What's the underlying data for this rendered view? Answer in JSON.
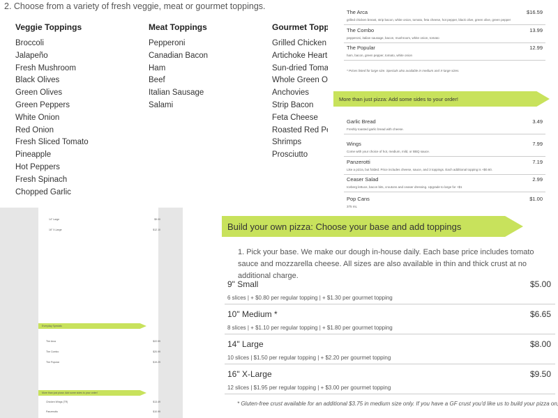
{
  "toppings": {
    "heading": "2. Choose from a variety of fresh veggie, meat or gourmet toppings.",
    "columns": [
      {
        "title": "Veggie Toppings",
        "items": [
          "Broccoli",
          "Jalapeño",
          "Fresh Mushroom",
          "Black Olives",
          "Green Olives",
          "Green Peppers",
          "White Onion",
          "Red Onion",
          "Fresh Sliced Tomato",
          "Pineapple",
          "Hot Peppers",
          "Fresh Spinach",
          "Chopped Garlic"
        ]
      },
      {
        "title": "Meat Toppings",
        "items": [
          "Pepperoni",
          "Canadian Bacon",
          "Ham",
          "Beef",
          "Italian Sausage",
          "Salami"
        ]
      },
      {
        "title": "Gourmet Toppings",
        "items": [
          "Grilled Chicken Breast",
          "Artichoke Hearts",
          "Sun-dried Tomatoes",
          "Whole Green Olives",
          "Anchovies",
          "Strip Bacon",
          "Feta Cheese",
          "Roasted Red Pepper",
          "Shrimps",
          "Prosciutto"
        ]
      }
    ]
  },
  "specials": {
    "items": [
      {
        "name": "The Arca",
        "price": "$16.59",
        "description": "grilled chicken breast, strip bacon, white onion, tomato, feta cheese, hot pepper, black olive, green olive, green pepper"
      },
      {
        "name": "The Combo",
        "price": "13.99",
        "description": "pepperoni, italian sausage, bacon, mushroom, white onion, tomato"
      },
      {
        "name": "The Popular",
        "price": "12.99",
        "description": "ham, bacon, green pepper, tomato, white onion"
      }
    ],
    "note": "* Prices listed for large size. Specials also available in medium and X-large sizes."
  },
  "sides": {
    "banner": "More than just pizza: Add some sides to your order!",
    "items": [
      {
        "name": "Garlic Bread",
        "price": "3.49",
        "description": "Freshly toasted garlic bread with cheese."
      },
      {
        "name": "Wings",
        "price": "7.99",
        "description": "Come with your choice of hot, medium, mild, or BBQ sauce."
      },
      {
        "name": "Panzerotti",
        "price": "7.19",
        "description": "Like a pizza, but folded. Price includes cheese, sauce, and 3 toppings. Each additional topping is +$0.60."
      },
      {
        "name": "Ceaser Salad",
        "price": "2.99",
        "description": "Iceberg lettuce, bacon bits, croutons and ceaser dressing. Upgrade to large for +$1"
      },
      {
        "name": "Pop Cans",
        "price": "$1.00",
        "description": "375 mL"
      }
    ]
  },
  "thumbnail": {
    "rows": [
      {
        "name": "14\" Large",
        "price": "$9.00"
      },
      {
        "name": "16\" X-Large",
        "price": "$12.10"
      }
    ],
    "specials_banner": "Everyday Specials",
    "sides_banner": "More than just pizza: Add some sides to your order!",
    "specials": [
      {
        "name": "The Arca",
        "price": "$22.59"
      },
      {
        "name": "The Combo",
        "price": "$20.99"
      },
      {
        "name": "The Popular",
        "price": "$19.29"
      }
    ],
    "sides": [
      {
        "name": "Chicken Wings (TR)",
        "price": "$13.49"
      },
      {
        "name": "Panzerotto",
        "price": "$10.99"
      }
    ]
  },
  "build": {
    "banner": "Build your own pizza: Choose your base and add toppings",
    "intro": "1. Pick your base. We make our dough in-house daily. Each base price includes tomato sauce and mozzarella cheese. All sizes are also available in thin and thick crust at no additional charge.",
    "sizes": [
      {
        "name": "9\" Small",
        "price": "$5.00",
        "detail": "6 slices | + $0.80 per regular topping | + $1.30 per gourmet topping"
      },
      {
        "name": "10\" Medium *",
        "price": "$6.65",
        "detail": "8 slices | + $1.10 per regular topping | + $1.80 per gourmet topping"
      },
      {
        "name": "14\" Large",
        "price": "$8.00",
        "detail": "10 slices | $1.50 per regular topping | + $2.20 per gourmet topping"
      },
      {
        "name": "16\" X-Large",
        "price": "$9.50",
        "detail": "12 slices | $1.95 per regular topping | + $3.00 per gourmet topping"
      }
    ],
    "note": "* Gluten-free crust available for an additional $3.75 in medium size only. If you have a GF crust you'd like us to build your pizza on, feel free to bring it in."
  }
}
